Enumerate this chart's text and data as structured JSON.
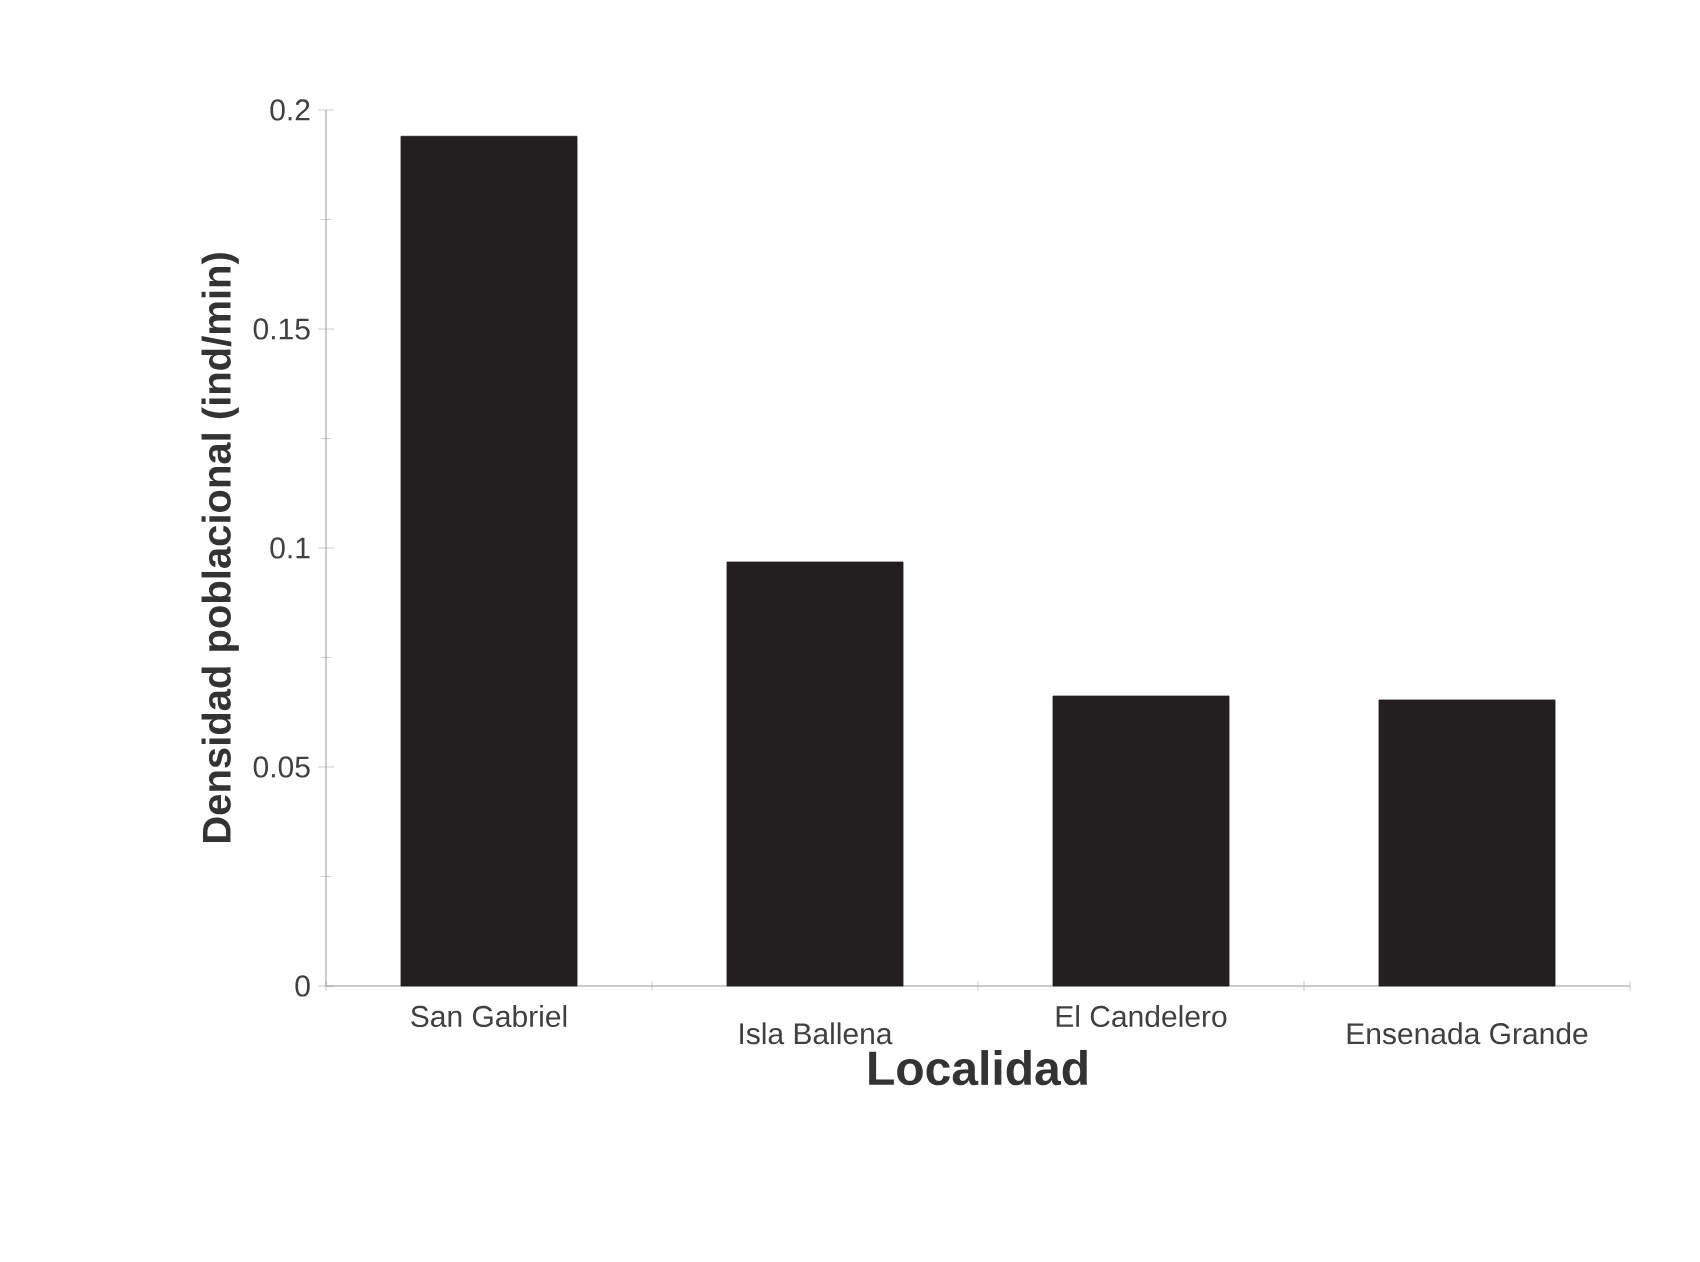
{
  "chart_data": {
    "type": "bar",
    "xlabel": "Localidad",
    "ylabel": "Densidad poblacional (ind/min)",
    "categories": [
      "San Gabriel",
      "Isla Ballena",
      "El Candelero",
      "Ensenada Grande"
    ],
    "values": [
      0.194,
      0.0968,
      0.0662,
      0.0653
    ],
    "color": "#231f20",
    "ylim": [
      0,
      0.2
    ],
    "yticks": [
      0,
      0.05,
      0.1,
      0.15,
      0.2
    ],
    "grid": false
  }
}
